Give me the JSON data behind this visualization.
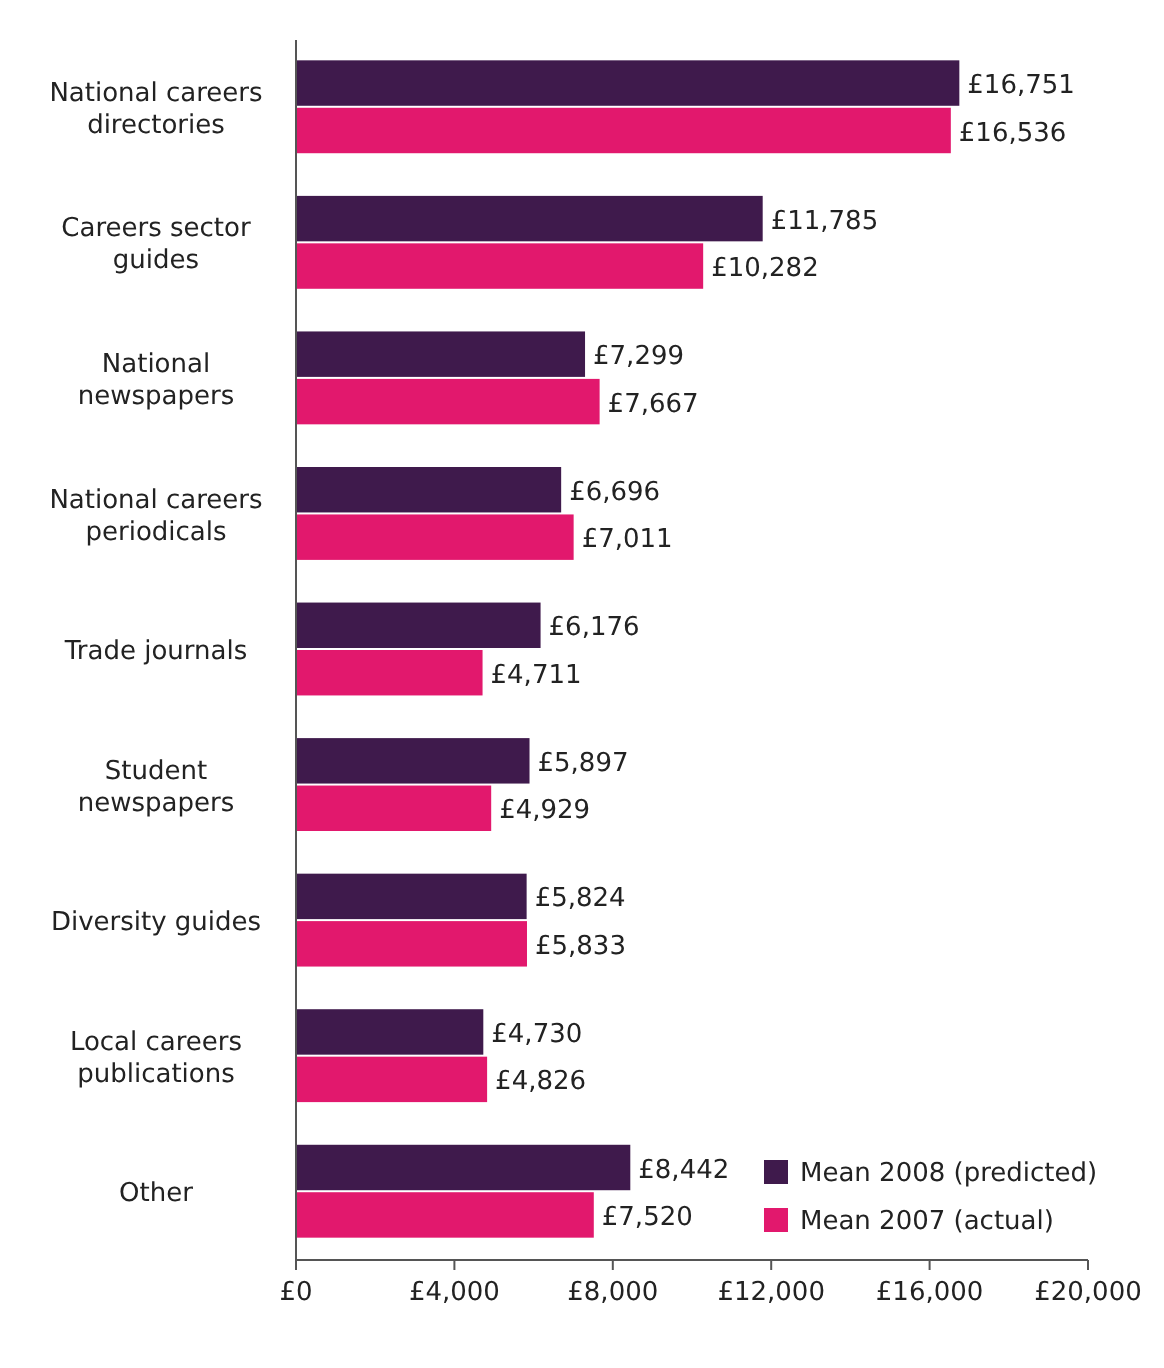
{
  "chart_data": {
    "type": "bar",
    "orientation": "horizontal",
    "categories": [
      "National careers directories",
      "Careers sector guides",
      "National newspapers",
      "National careers periodicals",
      "Trade journals",
      "Student newspapers",
      "Diversity guides",
      "Local careers publications",
      "Other"
    ],
    "series": [
      {
        "name": "Mean 2008 (predicted)",
        "color": "#3f1a4c",
        "values": [
          16751,
          11785,
          7299,
          6696,
          6176,
          5897,
          5824,
          4730,
          8442
        ],
        "value_labels": [
          "£16,751",
          "£11,785",
          "£7,299",
          "£6,696",
          "£6,176",
          "£5,897",
          "£5,824",
          "£4,730",
          "£8,442"
        ]
      },
      {
        "name": "Mean 2007 (actual)",
        "color": "#e2186d",
        "values": [
          16536,
          10282,
          7667,
          7011,
          4711,
          4929,
          5833,
          4826,
          7520
        ],
        "value_labels": [
          "£16,536",
          "£10,282",
          "£7,667",
          "£7,011",
          "£4,711",
          "£4,929",
          "£5,833",
          "£4,826",
          "£7,520"
        ]
      }
    ],
    "xlim": [
      0,
      20000
    ],
    "xticks": [
      {
        "value": 0,
        "label": "£0"
      },
      {
        "value": 4000,
        "label": "£4,000"
      },
      {
        "value": 8000,
        "label": "£8,000"
      },
      {
        "value": 12000,
        "label": "£12,000"
      },
      {
        "value": 16000,
        "label": "£16,000"
      },
      {
        "value": 20000,
        "label": "£20,000"
      }
    ],
    "legend": "bottom right",
    "grid": false
  }
}
